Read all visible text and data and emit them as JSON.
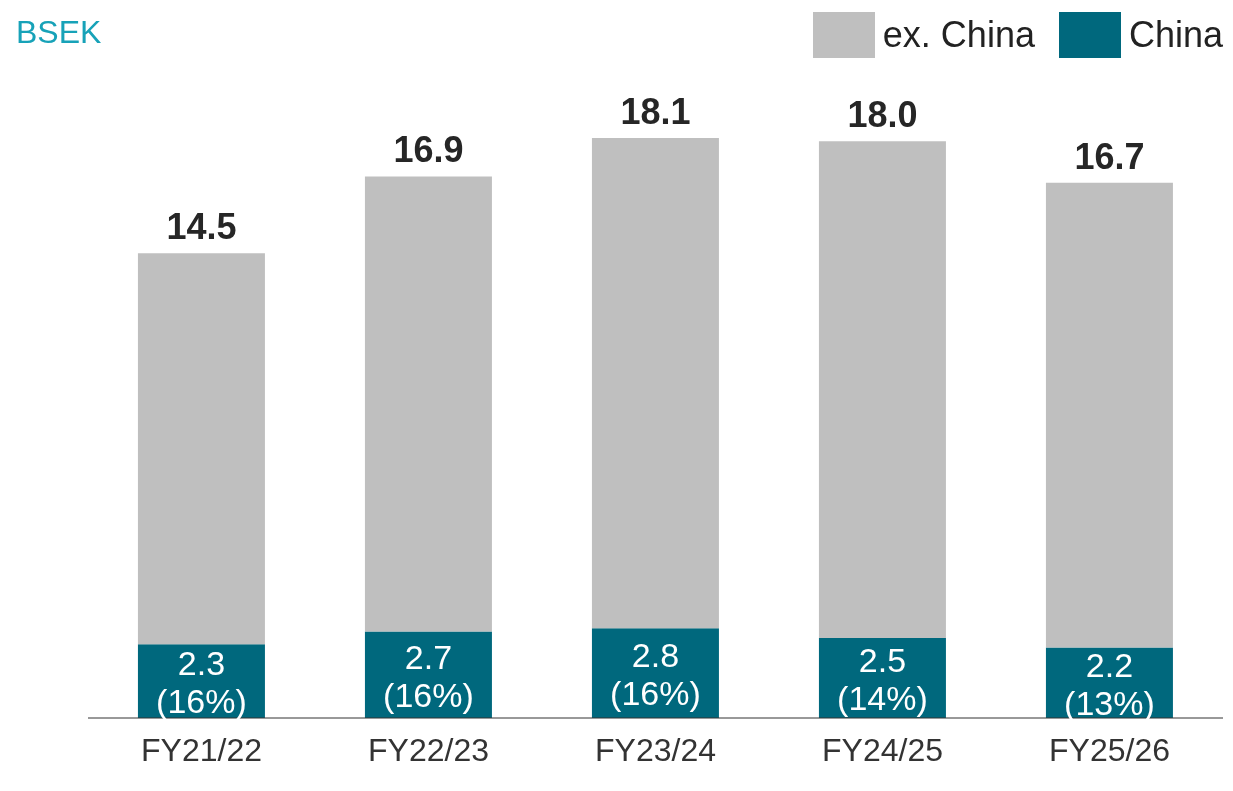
{
  "chart_data": {
    "type": "bar",
    "ylabel": "BSEK",
    "categories": [
      "FY21/22",
      "FY22/23",
      "FY23/24",
      "FY24/25",
      "FY25/26"
    ],
    "stacked": true,
    "legend": "top right",
    "series": [
      {
        "name": "China",
        "color": "#00687d",
        "values": [
          2.3,
          2.7,
          2.8,
          2.5,
          2.2
        ],
        "value_labels": [
          "2.3 (16%)",
          "2.7 (16%)",
          "2.8 (16%)",
          "2.5 (14%)",
          "2.2 (13%)"
        ]
      },
      {
        "name": "ex. China",
        "color": "#bfbfbf",
        "values": [
          12.2,
          14.2,
          15.3,
          15.5,
          14.5
        ]
      }
    ],
    "totals": [
      "14.5",
      "16.9",
      "18.1",
      "18.0",
      "16.7"
    ]
  }
}
